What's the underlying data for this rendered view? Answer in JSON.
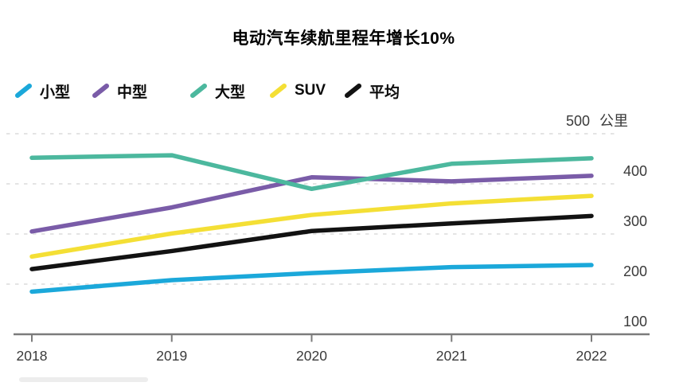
{
  "chart_data": {
    "type": "line",
    "title": "电动汽车续航里程年增长10%",
    "x": [
      "2018",
      "2019",
      "2020",
      "2021",
      "2022"
    ],
    "unit": "公里",
    "ylabel_top_value": "500",
    "yticks": [
      100,
      200,
      300,
      400
    ],
    "ylim": [
      100,
      500
    ],
    "grid": "horizontal-dashed",
    "legend_position": "top-left",
    "series": [
      {
        "name": "小型",
        "color": "#1BA8DA",
        "values": [
          185,
          208,
          222,
          234,
          238
        ]
      },
      {
        "name": "中型",
        "color": "#7A5CA8",
        "values": [
          305,
          353,
          413,
          405,
          416
        ]
      },
      {
        "name": "大型",
        "color": "#4CB89E",
        "values": [
          452,
          457,
          390,
          440,
          451
        ]
      },
      {
        "name": "SUV",
        "color": "#F4DF35",
        "values": [
          255,
          301,
          338,
          361,
          376
        ]
      },
      {
        "name": "平均",
        "color": "#121212",
        "values": [
          230,
          266,
          306,
          321,
          336
        ]
      }
    ]
  },
  "colors": {
    "axis": "#7B7B7B",
    "gridline": "#DBDBDB",
    "tick_text": "#3A3A3A",
    "title_text": "#000000"
  },
  "legend_item_lefts": [
    18,
    115,
    238,
    338,
    432
  ]
}
